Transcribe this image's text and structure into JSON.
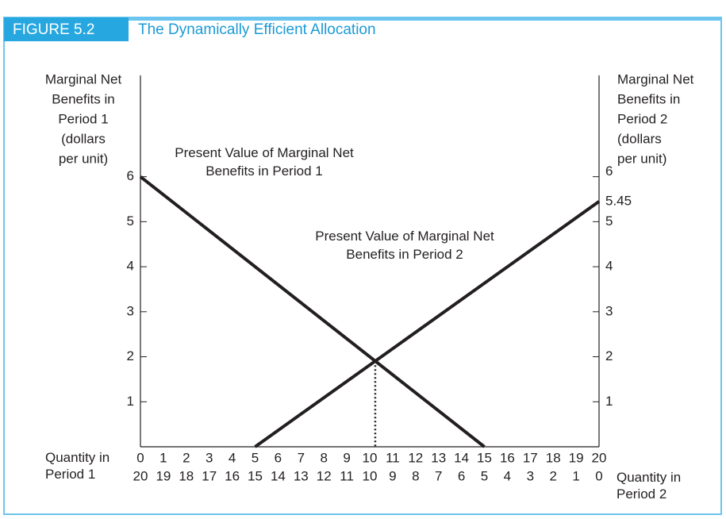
{
  "chart_data": {
    "type": "line",
    "figure_label": "FIGURE 5.2",
    "title": "The Dynamically Efficient Allocation",
    "y_label": [
      "Marginal Net",
      "Benefits in",
      "Period 1",
      "(dollars",
      "per unit)"
    ],
    "y2_label": [
      "Marginal Net",
      "Benefits in",
      "Period 2",
      "(dollars",
      "per unit)"
    ],
    "x_label": "Quantity in Period 1",
    "x2_label": "Quantity in Period 2",
    "xlim": [
      0,
      20
    ],
    "xticks": [
      0,
      1,
      2,
      3,
      4,
      5,
      6,
      7,
      8,
      9,
      10,
      11,
      12,
      13,
      14,
      15,
      16,
      17,
      18,
      19,
      20
    ],
    "x2lim": [
      20,
      0
    ],
    "x2ticks": [
      20,
      19,
      18,
      17,
      16,
      15,
      14,
      13,
      12,
      11,
      10,
      9,
      8,
      7,
      6,
      5,
      4,
      3,
      2,
      1,
      0
    ],
    "ylim": [
      0,
      8.25
    ],
    "yticks": [
      1,
      2,
      3,
      4,
      5,
      6
    ],
    "y2lim": [
      0,
      8.25
    ],
    "y2ticks": [
      1,
      2,
      3,
      4,
      5,
      5.45,
      6
    ],
    "series": [
      {
        "name": "Present Value of Marginal Net Benefits in Period 1",
        "color": "#231f20",
        "x": [
          0,
          15
        ],
        "values": [
          6,
          0
        ]
      },
      {
        "name": "Present Value of Marginal Net Benefits in Period 2",
        "color": "#231f20",
        "x": [
          5,
          20
        ],
        "values": [
          0,
          5.45
        ],
        "axis": "y2"
      }
    ],
    "intersection": {
      "x": 10.24,
      "y": 1.9
    }
  }
}
